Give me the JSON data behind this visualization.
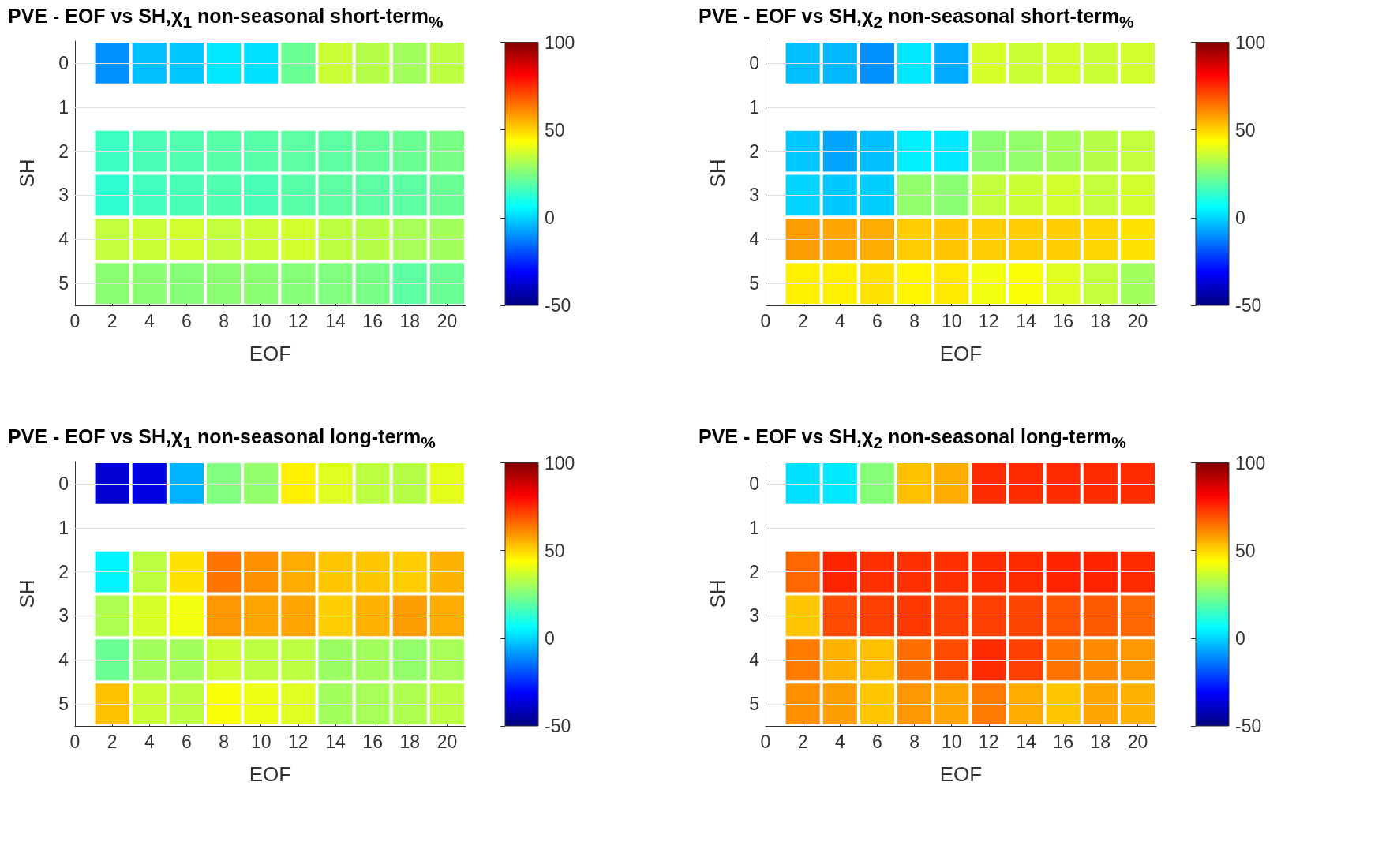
{
  "chart_data": [
    {
      "type": "heatmap",
      "title": "PVE - EOF vs SH,χ$_{1}$ non-seasonal short-term$_{%}$",
      "xlabel": "EOF",
      "ylabel": "SH",
      "x": [
        2,
        4,
        6,
        8,
        10,
        12,
        14,
        16,
        18,
        20
      ],
      "xlim": [
        0,
        21
      ],
      "xticks": [
        0,
        2,
        4,
        6,
        8,
        10,
        12,
        14,
        16,
        18,
        20
      ],
      "y_categories": [
        "0",
        "1",
        "2",
        "3",
        "4",
        "5"
      ],
      "grid": "y",
      "clim": [
        -50,
        100
      ],
      "cticks": [
        -50,
        0,
        50,
        100
      ],
      "cells": [
        [
          -10,
          -3,
          -2,
          3,
          2,
          22,
          36,
          33,
          30,
          34
        ],
        [
          null,
          null,
          null,
          null,
          null,
          null,
          null,
          null,
          null,
          null
        ],
        [
          15,
          17,
          18,
          19,
          19,
          20,
          20,
          21,
          22,
          24
        ],
        [
          13,
          16,
          17,
          18,
          17,
          19,
          20,
          20,
          20,
          22
        ],
        [
          35,
          36,
          37,
          35,
          36,
          37,
          34,
          33,
          31,
          30
        ],
        [
          27,
          27,
          26,
          27,
          27,
          26,
          25,
          24,
          20,
          22
        ]
      ]
    },
    {
      "type": "heatmap",
      "title": "PVE - EOF vs SH,χ$_{2}$ non-seasonal short-term$_{%}$",
      "xlabel": "EOF",
      "ylabel": "SH",
      "x": [
        2,
        4,
        6,
        8,
        10,
        12,
        14,
        16,
        18,
        20
      ],
      "xlim": [
        0,
        21
      ],
      "xticks": [
        0,
        2,
        4,
        6,
        8,
        10,
        12,
        14,
        16,
        18,
        20
      ],
      "y_categories": [
        "0",
        "1",
        "2",
        "3",
        "4",
        "5"
      ],
      "grid": "y",
      "clim": [
        -50,
        100
      ],
      "cticks": [
        -50,
        0,
        50,
        100
      ],
      "cells": [
        [
          -3,
          -4,
          -10,
          3,
          -6,
          38,
          36,
          37,
          36,
          37
        ],
        [
          null,
          null,
          null,
          null,
          null,
          null,
          null,
          null,
          null,
          null
        ],
        [
          -2,
          -7,
          -3,
          4,
          3,
          27,
          28,
          30,
          33,
          35
        ],
        [
          0,
          -2,
          -1,
          28,
          27,
          35,
          36,
          37,
          35,
          37
        ],
        [
          58,
          57,
          56,
          51,
          52,
          51,
          51,
          51,
          50,
          48
        ],
        [
          46,
          46,
          48,
          45,
          47,
          42,
          43,
          39,
          35,
          30
        ]
      ]
    },
    {
      "type": "heatmap",
      "title": "PVE - EOF vs SH,χ$_{1}$ non-seasonal long-term$_{%}$",
      "xlabel": "EOF",
      "ylabel": "SH",
      "x": [
        2,
        4,
        6,
        8,
        10,
        12,
        14,
        16,
        18,
        20
      ],
      "xlim": [
        0,
        21
      ],
      "xticks": [
        0,
        2,
        4,
        6,
        8,
        10,
        12,
        14,
        16,
        18,
        20
      ],
      "y_categories": [
        "0",
        "1",
        "2",
        "3",
        "4",
        "5"
      ],
      "grid": "y",
      "clim": [
        -50,
        100
      ],
      "cticks": [
        -50,
        0,
        50,
        100
      ],
      "cells": [
        [
          -38,
          -35,
          -5,
          25,
          28,
          46,
          39,
          34,
          33,
          40
        ],
        [
          null,
          null,
          null,
          null,
          null,
          null,
          null,
          null,
          null,
          null
        ],
        [
          5,
          34,
          48,
          64,
          60,
          56,
          52,
          52,
          51,
          55
        ],
        [
          32,
          38,
          42,
          59,
          57,
          57,
          51,
          55,
          58,
          56
        ],
        [
          22,
          30,
          30,
          36,
          34,
          34,
          29,
          30,
          28,
          31
        ],
        [
          53,
          36,
          34,
          43,
          41,
          39,
          30,
          31,
          32,
          34
        ]
      ]
    },
    {
      "type": "heatmap",
      "title": "PVE - EOF vs SH,χ$_{2}$ non-seasonal long-term$_{%}$",
      "xlabel": "EOF",
      "ylabel": "SH",
      "x": [
        2,
        4,
        6,
        8,
        10,
        12,
        14,
        16,
        18,
        20
      ],
      "xlim": [
        0,
        21
      ],
      "xticks": [
        0,
        2,
        4,
        6,
        8,
        10,
        12,
        14,
        16,
        18,
        20
      ],
      "y_categories": [
        "0",
        "1",
        "2",
        "3",
        "4",
        "5"
      ],
      "grid": "y",
      "clim": [
        -50,
        100
      ],
      "cticks": [
        -50,
        0,
        50,
        100
      ],
      "cells": [
        [
          2,
          3,
          26,
          53,
          56,
          75,
          75,
          75,
          75,
          75
        ],
        [
          null,
          null,
          null,
          null,
          null,
          null,
          null,
          null,
          null,
          null
        ],
        [
          66,
          76,
          74,
          74,
          74,
          75,
          75,
          76,
          76,
          75
        ],
        [
          52,
          70,
          72,
          73,
          72,
          72,
          71,
          69,
          68,
          66
        ],
        [
          63,
          55,
          53,
          65,
          70,
          75,
          72,
          64,
          61,
          59
        ],
        [
          60,
          58,
          52,
          59,
          57,
          63,
          56,
          52,
          57,
          55
        ]
      ]
    }
  ]
}
